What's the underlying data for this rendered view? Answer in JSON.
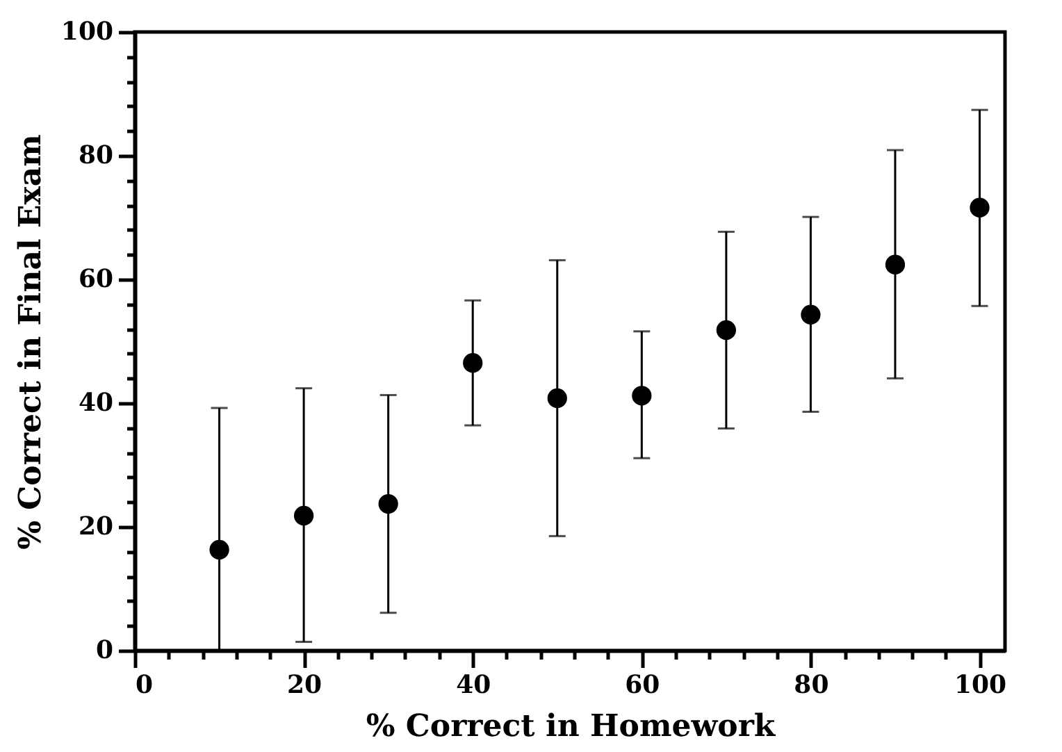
{
  "chart_data": {
    "type": "scatter",
    "xlabel": "% Correct in Homework",
    "ylabel": "% Correct in Final Exam",
    "x": [
      10,
      20,
      30,
      40,
      50,
      60,
      70,
      80,
      90,
      100
    ],
    "series": [
      {
        "color": "#000000",
        "values": [
          16.3,
          21.8,
          23.7,
          46.5,
          40.8,
          41.2,
          51.8,
          54.3,
          62.4,
          71.6
        ],
        "errors": [
          [
            0,
            39.2
          ],
          [
            1.4,
            42.4
          ],
          [
            6.1,
            41.3
          ],
          [
            36.4,
            56.6
          ],
          [
            18.5,
            63.1
          ],
          [
            31.1,
            51.6
          ],
          [
            35.9,
            67.7
          ],
          [
            38.6,
            70.1
          ],
          [
            44.0,
            80.9
          ],
          [
            55.7,
            87.4
          ]
        ]
      }
    ],
    "xlim": [
      0,
      103
    ],
    "ylim": [
      0,
      100
    ],
    "xticks": [
      0,
      {
        "value": 4,
        "label": null
      },
      {
        "value": 8,
        "label": null
      },
      {
        "value": 12,
        "label": null
      },
      {
        "value": 16,
        "label": null
      },
      20,
      {
        "value": 24,
        "label": null
      },
      {
        "value": 28,
        "label": null
      },
      {
        "value": 32,
        "label": null
      },
      {
        "value": 36,
        "label": null
      },
      40,
      {
        "value": 44,
        "label": null
      },
      {
        "value": 48,
        "label": null
      },
      {
        "value": 52,
        "label": null
      },
      {
        "value": 56,
        "label": null
      },
      60,
      {
        "value": 64,
        "label": null
      },
      {
        "value": 68,
        "label": null
      },
      {
        "value": 72,
        "label": null
      },
      {
        "value": 76,
        "label": null
      },
      80,
      {
        "value": 84,
        "label": null
      },
      {
        "value": 88,
        "label": null
      },
      {
        "value": 92,
        "label": null
      },
      {
        "value": 96,
        "label": null
      },
      100
    ],
    "yticks": [
      0,
      {
        "value": 4,
        "label": null
      },
      {
        "value": 8,
        "label": null
      },
      {
        "value": 12,
        "label": null
      },
      {
        "value": 16,
        "label": null
      },
      20,
      {
        "value": 24,
        "label": null
      },
      {
        "value": 28,
        "label": null
      },
      {
        "value": 32,
        "label": null
      },
      {
        "value": 36,
        "label": null
      },
      40,
      {
        "value": 44,
        "label": null
      },
      {
        "value": 48,
        "label": null
      },
      {
        "value": 52,
        "label": null
      },
      {
        "value": 56,
        "label": null
      },
      60,
      {
        "value": 64,
        "label": null
      },
      {
        "value": 68,
        "label": null
      },
      {
        "value": 72,
        "label": null
      },
      {
        "value": 76,
        "label": null
      },
      80,
      {
        "value": 84,
        "label": null
      },
      {
        "value": 88,
        "label": null
      },
      {
        "value": 92,
        "label": null
      },
      {
        "value": 96,
        "label": null
      },
      100
    ],
    "marker": "circle",
    "grid": false
  }
}
